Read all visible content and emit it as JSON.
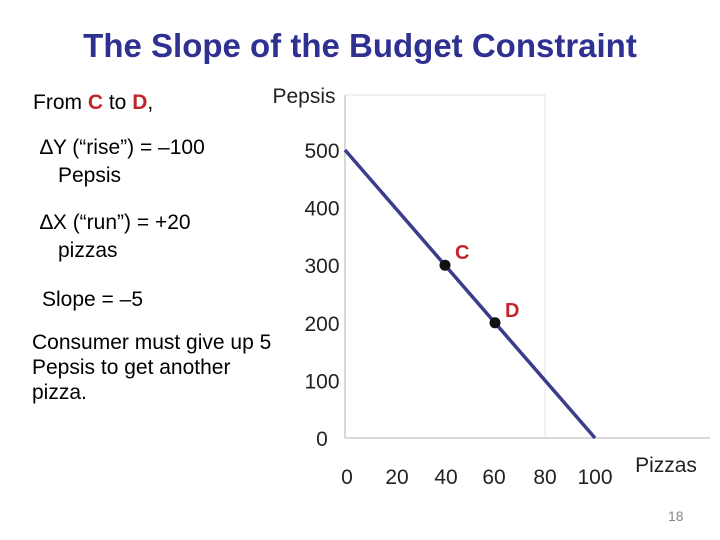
{
  "slide": {
    "title": "The Slope of the Budget Constraint",
    "page_number": "18",
    "colors": {
      "title": "#2e3192",
      "accent": "#c0272d",
      "line": "#3c3c8c",
      "axis_text": "#222222"
    }
  },
  "left_text": {
    "from_prefix": "From ",
    "point_c": "C",
    "to_word": " to ",
    "point_d": "D",
    "from_suffix": ",",
    "delta_y": "∆Y (“rise”) = –100",
    "delta_y_cont": "Pepsis",
    "delta_x": "∆X (“run”) = +20",
    "delta_x_cont": "pizzas",
    "slope": "Slope = –5",
    "consumer": "Consumer must give up 5 Pepsis to get another pizza."
  },
  "chart_data": {
    "type": "line",
    "xlabel": "Pizzas",
    "ylabel": "Pepsis",
    "x_ticks": [
      0,
      20,
      40,
      60,
      80,
      100
    ],
    "y_ticks": [
      0,
      100,
      200,
      300,
      400,
      500
    ],
    "xlim": [
      0,
      100
    ],
    "ylim": [
      0,
      500
    ],
    "series": [
      {
        "x": [
          0,
          100
        ],
        "y": [
          500,
          0
        ]
      }
    ],
    "points": [
      {
        "label": "C",
        "x": 40,
        "y": 300
      },
      {
        "label": "D",
        "x": 60,
        "y": 200
      }
    ]
  }
}
